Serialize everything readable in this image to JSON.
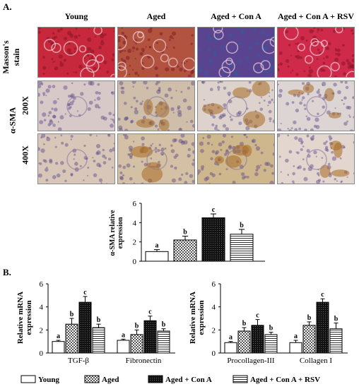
{
  "figure": {
    "panel_a_label": "A.",
    "panel_b_label": "B.",
    "columns": [
      "Young",
      "Aged",
      "Aged + Con A",
      "Aged + Con A + RSV"
    ],
    "row_labels": {
      "masson_line1": "Masson's",
      "masson_line2": "stain",
      "asma": "α-SMA",
      "mag_200": "200X",
      "mag_400": "400X"
    },
    "micrograph_rows": [
      {
        "row": "masson",
        "colors": [
          "#c8283c",
          "#b2533f",
          "#5a4490",
          "#cf2a4a"
        ]
      },
      {
        "row": "asma-200",
        "colors": [
          "#d7c9c8",
          "#cfbfaa",
          "#ddd3cc",
          "#ddd4d4"
        ]
      },
      {
        "row": "asma-400",
        "colors": [
          "#d8c7b8",
          "#d4c0a4",
          "#cfb78d",
          "#e2d6cf"
        ]
      }
    ]
  },
  "legend": [
    {
      "label": "Young",
      "pattern": "white"
    },
    {
      "label": "Aged",
      "pattern": "checker"
    },
    {
      "label": "Aged + Con A",
      "pattern": "black"
    },
    {
      "label": "Aged + Con A + RSV",
      "pattern": "lines"
    }
  ],
  "chart_data": [
    {
      "type": "bar",
      "ylabel_line1": "α-SMA relative",
      "ylabel_line2": "expression",
      "ylim": [
        0,
        6
      ],
      "yticks": [
        "0",
        "2",
        "4",
        "6"
      ],
      "categories": [
        "Young",
        "Aged",
        "Aged + Con A",
        "Aged + Con A + RSV"
      ],
      "values": [
        1.0,
        2.2,
        4.5,
        2.8
      ],
      "errors": [
        0.2,
        0.4,
        0.4,
        0.5
      ],
      "letters": [
        "a",
        "b",
        "c",
        "b"
      ]
    },
    {
      "type": "bar",
      "ylabel_line1": "Relative mRNA",
      "ylabel_line2": "expression",
      "ylim": [
        0,
        6
      ],
      "yticks": [
        "0",
        "2",
        "4",
        "6"
      ],
      "groups": [
        "TGF-β",
        "Fibronectin"
      ],
      "series": [
        {
          "name": "Young",
          "values": [
            1.0,
            1.1
          ],
          "errors": [
            0.1,
            0.1
          ],
          "letters": [
            "a",
            "a"
          ]
        },
        {
          "name": "Aged",
          "values": [
            2.5,
            1.6
          ],
          "errors": [
            0.5,
            0.4
          ],
          "letters": [
            "b",
            "b"
          ]
        },
        {
          "name": "Aged + Con A",
          "values": [
            4.4,
            2.8
          ],
          "errors": [
            0.5,
            0.4
          ],
          "letters": [
            "c",
            "c"
          ]
        },
        {
          "name": "Aged + Con A + RSV",
          "values": [
            2.2,
            1.9
          ],
          "errors": [
            0.3,
            0.2
          ],
          "letters": [
            "b",
            "b"
          ]
        }
      ]
    },
    {
      "type": "bar",
      "ylabel_line1": "Relative mRNA",
      "ylabel_line2": "expression",
      "ylim": [
        0,
        6
      ],
      "yticks": [
        "0",
        "2",
        "4",
        "6"
      ],
      "groups": [
        "Procollagen-III",
        "Collagen I"
      ],
      "series": [
        {
          "name": "Young",
          "values": [
            0.9,
            0.9
          ],
          "errors": [
            0.1,
            0.2
          ],
          "letters": [
            "a",
            "a"
          ]
        },
        {
          "name": "Aged",
          "values": [
            1.9,
            2.4
          ],
          "errors": [
            0.3,
            0.3
          ],
          "letters": [
            "b",
            "b"
          ]
        },
        {
          "name": "Aged + Con A",
          "values": [
            2.4,
            4.4
          ],
          "errors": [
            0.5,
            0.3
          ],
          "letters": [
            "c",
            "c"
          ]
        },
        {
          "name": "Aged + Con A + RSV",
          "values": [
            1.6,
            2.1
          ],
          "errors": [
            0.2,
            0.5
          ],
          "letters": [
            "b",
            "b"
          ]
        }
      ]
    }
  ]
}
